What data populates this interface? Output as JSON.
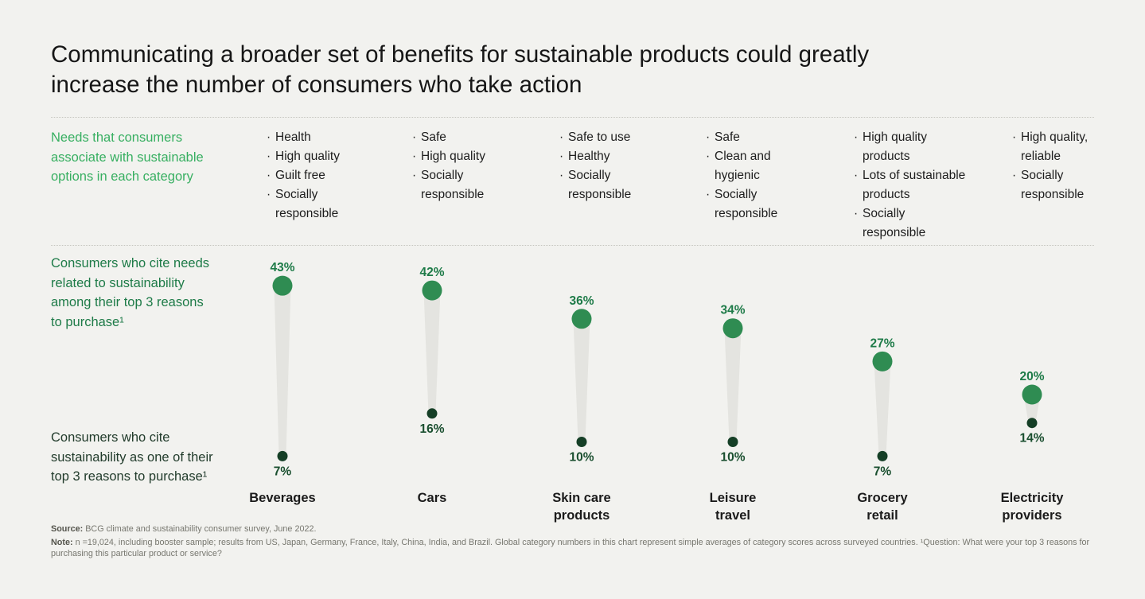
{
  "page": {
    "background": "#f2f2ef",
    "title": "Communicating a broader set of benefits for sustainable products could greatly\nincrease the number of consumers who take action"
  },
  "needs": {
    "label": "Needs that consumers\nassociate with sustainable\noptions in each category",
    "columns": [
      {
        "category": "Beverages",
        "items": [
          "Health",
          "High quality",
          "Guilt free",
          "Socially\nresponsible"
        ]
      },
      {
        "category": "Cars",
        "items": [
          "Safe",
          "High quality",
          "Socially\nresponsible"
        ]
      },
      {
        "category": "Skin care products",
        "items": [
          "Safe to use",
          "Healthy",
          "Socially\nresponsible"
        ]
      },
      {
        "category": "Leisure travel",
        "items": [
          "Safe",
          "Clean and\nhygienic",
          "Socially\nresponsible"
        ]
      },
      {
        "category": "Grocery retail",
        "items": [
          "High quality\nproducts",
          "Lots of sustainable\nproducts",
          "Socially\nresponsible"
        ]
      },
      {
        "category": "Electricity providers",
        "items": [
          "High quality,\nreliable",
          "Socially\nresponsible"
        ]
      }
    ]
  },
  "chart_labels": {
    "top": "Consumers who cite needs\nrelated to sustainability\namong their top 3 reasons\nto purchase¹",
    "bottom": "Consumers who cite\nsustainability as one of their\ntop 3 reasons to purchase¹"
  },
  "chart_data": {
    "type": "bar",
    "variant": "dumbbell-lollipop",
    "categories": [
      "Beverages",
      "Cars",
      "Skin care\nproducts",
      "Leisure\ntravel",
      "Grocery\nretail",
      "Electricity\nproviders"
    ],
    "series": [
      {
        "name": "Consumers who cite needs related to sustainability among their top 3 reasons to purchase",
        "values": [
          43,
          42,
          36,
          34,
          27,
          20
        ]
      },
      {
        "name": "Consumers who cite sustainability as one of their top 3 reasons to purchase",
        "values": [
          7,
          16,
          10,
          10,
          7,
          14
        ]
      }
    ],
    "unit": "%",
    "ylim": [
      0,
      50
    ],
    "grid": false,
    "legend_position": "left-labels",
    "colors": {
      "high_marker": "#2f8c52",
      "low_marker": "#153f26",
      "high_label": "#1e7b48",
      "low_label": "#1a4f2f",
      "connector": "#e4e4e0"
    }
  },
  "footer": {
    "source_label": "Source:",
    "source_text": "BCG climate and sustainability consumer survey, June 2022.",
    "note_label": "Note:",
    "note_text": "n =19,024, including booster sample; results from US, Japan, Germany, France, Italy, China, India, and Brazil. Global category numbers in this chart represent simple averages of category scores across surveyed countries. ¹Question: What were your top 3 reasons for purchasing this particular product or service?"
  }
}
